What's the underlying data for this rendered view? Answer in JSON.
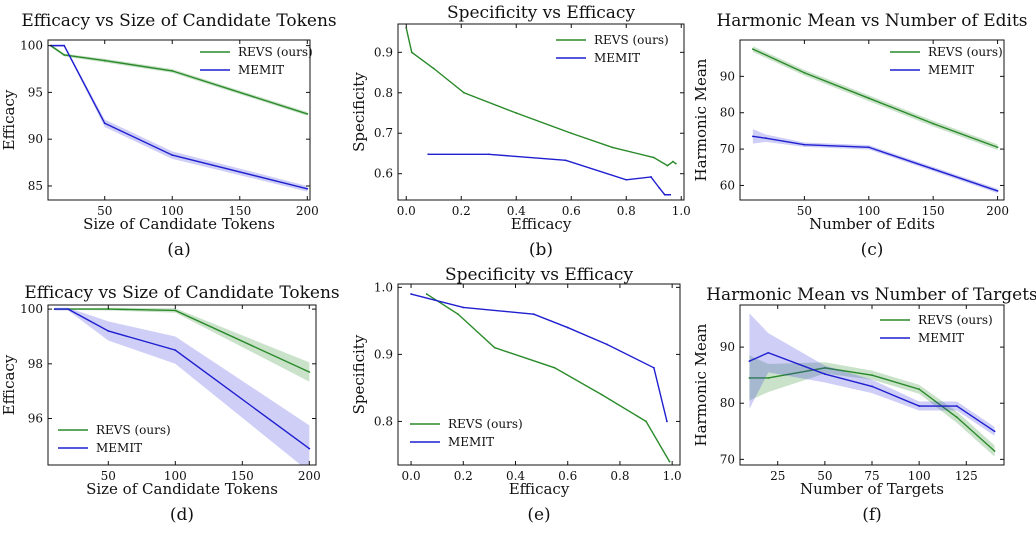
{
  "colors": {
    "revs": "#2a8a2a",
    "memit": "#1f1fd0",
    "revs_band": "#2a8a2a",
    "memit_band": "#3a3ae0"
  },
  "chart_data": [
    {
      "type": "line",
      "title": "Efficacy vs Size of Candidate Tokens",
      "xlabel": "Size of Candidate Tokens",
      "ylabel": "Efficacy",
      "caption": "(a)",
      "xlim": [
        8,
        202
      ],
      "ylim": [
        83.5,
        100.6
      ],
      "xticks": [
        50,
        100,
        150,
        200
      ],
      "yticks": [
        85,
        90,
        95,
        100
      ],
      "legend": "top-right",
      "series": [
        {
          "name": "REVS (ours)",
          "key": "revs",
          "x": [
            10,
            20,
            50,
            100,
            200
          ],
          "y": [
            100,
            99,
            98.4,
            97.3,
            92.7
          ],
          "band": [
            0.15,
            0.15,
            0.2,
            0.2,
            0.2
          ]
        },
        {
          "name": "MEMIT",
          "key": "memit",
          "x": [
            10,
            20,
            50,
            100,
            200
          ],
          "y": [
            100,
            100,
            91.7,
            88.3,
            84.7
          ],
          "band": [
            0.1,
            0.1,
            0.4,
            0.4,
            0.3
          ]
        }
      ]
    },
    {
      "type": "line",
      "title": "Specificity vs Efficacy",
      "xlabel": "Efficacy",
      "ylabel": "Specificity",
      "caption": "(b)",
      "xlim": [
        -0.03,
        1.01
      ],
      "ylim": [
        0.535,
        0.97
      ],
      "xticks": [
        0.0,
        0.2,
        0.4,
        0.6,
        0.8,
        1.0
      ],
      "yticks": [
        0.6,
        0.7,
        0.8,
        0.9
      ],
      "legend": "top-right",
      "series": [
        {
          "name": "REVS (ours)",
          "key": "revs",
          "x": [
            0.0,
            0.02,
            0.1,
            0.21,
            0.4,
            0.6,
            0.75,
            0.9,
            0.95,
            0.97,
            0.98
          ],
          "y": [
            0.96,
            0.9,
            0.86,
            0.8,
            0.75,
            0.7,
            0.665,
            0.64,
            0.62,
            0.63,
            0.625
          ]
        },
        {
          "name": "MEMIT",
          "key": "memit",
          "x": [
            0.08,
            0.3,
            0.58,
            0.8,
            0.89,
            0.92,
            0.94,
            0.96
          ],
          "y": [
            0.648,
            0.648,
            0.633,
            0.585,
            0.592,
            0.565,
            0.548,
            0.548
          ]
        }
      ]
    },
    {
      "type": "line",
      "title": "Harmonic Mean vs Number of Edits",
      "xlabel": "Number of Edits",
      "ylabel": "Harmonic Mean",
      "caption": "(c)",
      "xlim": [
        0,
        205
      ],
      "ylim": [
        56,
        100
      ],
      "xticks": [
        50,
        100,
        150,
        200
      ],
      "yticks": [
        60,
        70,
        80,
        90
      ],
      "legend": "top-right",
      "series": [
        {
          "name": "REVS (ours)",
          "key": "revs",
          "x": [
            10,
            50,
            100,
            150,
            200
          ],
          "y": [
            97.5,
            91,
            84,
            77,
            70.5
          ],
          "band": [
            0.8,
            0.8,
            0.8,
            0.8,
            0.8
          ]
        },
        {
          "name": "MEMIT",
          "key": "memit",
          "x": [
            10,
            20,
            50,
            100,
            150,
            200
          ],
          "y": [
            73.5,
            73,
            71.2,
            70.5,
            64.5,
            58.5
          ],
          "band": [
            2,
            1,
            0.6,
            0.6,
            0.6,
            0.6
          ]
        }
      ]
    },
    {
      "type": "line",
      "title": "Efficacy vs Size of Candidate Tokens",
      "xlabel": "Size of Candidate Tokens",
      "ylabel": "Efficacy",
      "caption": "(d)",
      "xlim": [
        5,
        205
      ],
      "ylim": [
        94.3,
        100.15
      ],
      "xticks": [
        50,
        100,
        150,
        200
      ],
      "yticks": [
        96,
        98,
        100
      ],
      "legend": "bottom-left",
      "series": [
        {
          "name": "REVS (ours)",
          "key": "revs",
          "x": [
            10,
            20,
            50,
            100,
            200
          ],
          "y": [
            100,
            100,
            100,
            99.95,
            97.7
          ],
          "band": [
            0.03,
            0.03,
            0.05,
            0.08,
            0.35
          ]
        },
        {
          "name": "MEMIT",
          "key": "memit",
          "x": [
            10,
            20,
            50,
            100,
            200
          ],
          "y": [
            100,
            100,
            99.2,
            98.5,
            94.9
          ],
          "band": [
            0.05,
            0.05,
            0.35,
            0.5,
            0.85
          ]
        }
      ]
    },
    {
      "type": "line",
      "title": "Specificity vs Efficacy",
      "xlabel": "Efficacy",
      "ylabel": "Specificity",
      "caption": "(e)",
      "xlim": [
        -0.05,
        1.03
      ],
      "ylim": [
        0.735,
        1.005
      ],
      "xticks": [
        0.0,
        0.2,
        0.4,
        0.6,
        0.8,
        1.0
      ],
      "yticks": [
        0.8,
        0.9,
        1.0
      ],
      "legend": "bottom-left",
      "series": [
        {
          "name": "REVS (ours)",
          "key": "revs",
          "x": [
            0.06,
            0.18,
            0.32,
            0.55,
            0.73,
            0.9,
            0.99
          ],
          "y": [
            0.99,
            0.96,
            0.91,
            0.88,
            0.84,
            0.8,
            0.74
          ]
        },
        {
          "name": "MEMIT",
          "key": "memit",
          "x": [
            0.0,
            0.2,
            0.47,
            0.6,
            0.75,
            0.93,
            0.98
          ],
          "y": [
            0.99,
            0.97,
            0.96,
            0.94,
            0.915,
            0.88,
            0.8
          ]
        }
      ]
    },
    {
      "type": "line",
      "title": "Harmonic Mean vs Number of Targets",
      "xlabel": "Number of Targets",
      "ylabel": "Harmonic Mean",
      "caption": "(f)",
      "xlim": [
        5,
        145
      ],
      "ylim": [
        69,
        97.5
      ],
      "xticks": [
        25,
        50,
        75,
        100,
        125
      ],
      "yticks": [
        70,
        80,
        90
      ],
      "legend": "top-right",
      "series": [
        {
          "name": "REVS (ours)",
          "key": "revs",
          "x": [
            10,
            20,
            50,
            75,
            100,
            120,
            140
          ],
          "y": [
            84.5,
            84.5,
            86.3,
            85,
            82.5,
            77.5,
            71.5
          ],
          "band": [
            4,
            2.5,
            1,
            0.8,
            0.8,
            1,
            1
          ]
        },
        {
          "name": "MEMIT",
          "key": "memit",
          "x": [
            10,
            20,
            50,
            75,
            100,
            120,
            140
          ],
          "y": [
            87.5,
            89,
            85.2,
            83,
            79.5,
            79.5,
            75
          ],
          "band": [
            8.5,
            3.5,
            1.5,
            1.2,
            0.8,
            0.8,
            0.8
          ]
        }
      ]
    }
  ]
}
